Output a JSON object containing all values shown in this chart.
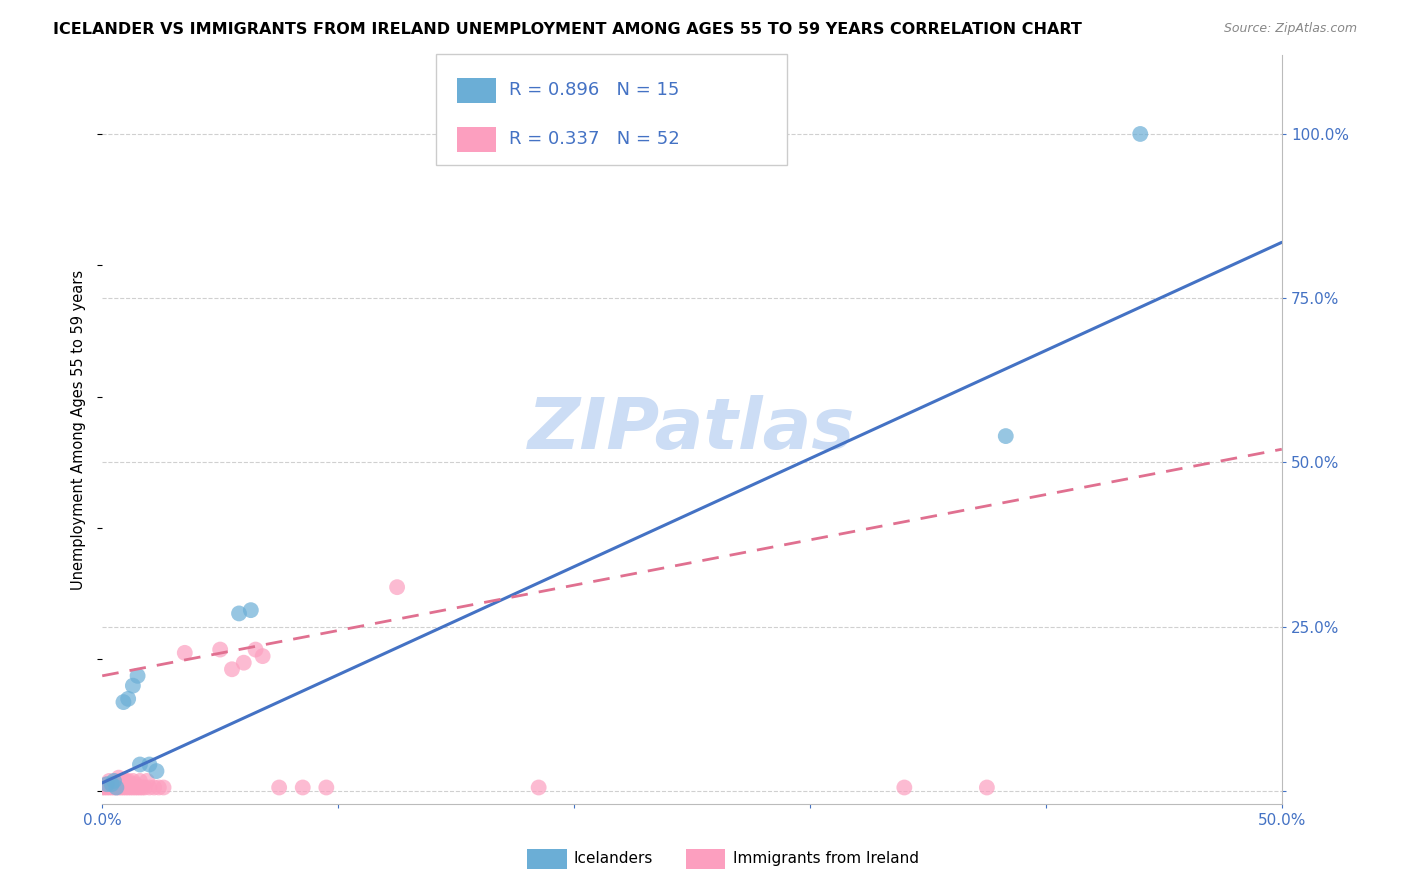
{
  "title": "ICELANDER VS IMMIGRANTS FROM IRELAND UNEMPLOYMENT AMONG AGES 55 TO 59 YEARS CORRELATION CHART",
  "source": "Source: ZipAtlas.com",
  "ylabel": "Unemployment Among Ages 55 to 59 years",
  "xlim": [
    0.0,
    0.5
  ],
  "ylim": [
    -0.02,
    1.12
  ],
  "xticks": [
    0.0,
    0.1,
    0.2,
    0.3,
    0.4,
    0.5
  ],
  "xtick_labels": [
    "0.0%",
    "",
    "",
    "",
    "",
    "50.0%"
  ],
  "ytick_labels_right": [
    "",
    "25.0%",
    "50.0%",
    "75.0%",
    "100.0%"
  ],
  "ytick_positions_right": [
    0.0,
    0.25,
    0.5,
    0.75,
    1.0
  ],
  "grid_color": "#d0d0d0",
  "watermark": "ZIPatlas",
  "blue_color": "#6baed6",
  "pink_color": "#fc9fbf",
  "blue_line_color": "#4472c4",
  "pink_line_color": "#e07090",
  "blue_line_x": [
    0.0,
    0.5
  ],
  "blue_line_y": [
    0.012,
    0.835
  ],
  "pink_line_x": [
    0.0,
    0.5
  ],
  "pink_line_y": [
    0.175,
    0.52
  ],
  "blue_scatter": [
    [
      0.002,
      0.01
    ],
    [
      0.004,
      0.01
    ],
    [
      0.005,
      0.015
    ],
    [
      0.006,
      0.005
    ],
    [
      0.009,
      0.135
    ],
    [
      0.011,
      0.14
    ],
    [
      0.013,
      0.16
    ],
    [
      0.015,
      0.175
    ],
    [
      0.016,
      0.04
    ],
    [
      0.02,
      0.04
    ],
    [
      0.023,
      0.03
    ],
    [
      0.058,
      0.27
    ],
    [
      0.063,
      0.275
    ],
    [
      0.383,
      0.54
    ],
    [
      0.44,
      1.0
    ]
  ],
  "pink_scatter": [
    [
      0.0,
      0.005
    ],
    [
      0.001,
      0.005
    ],
    [
      0.002,
      0.005
    ],
    [
      0.002,
      0.01
    ],
    [
      0.003,
      0.005
    ],
    [
      0.003,
      0.015
    ],
    [
      0.004,
      0.005
    ],
    [
      0.004,
      0.01
    ],
    [
      0.005,
      0.005
    ],
    [
      0.005,
      0.01
    ],
    [
      0.006,
      0.005
    ],
    [
      0.006,
      0.015
    ],
    [
      0.007,
      0.005
    ],
    [
      0.007,
      0.01
    ],
    [
      0.007,
      0.02
    ],
    [
      0.008,
      0.005
    ],
    [
      0.009,
      0.005
    ],
    [
      0.009,
      0.015
    ],
    [
      0.01,
      0.005
    ],
    [
      0.01,
      0.015
    ],
    [
      0.011,
      0.005
    ],
    [
      0.011,
      0.015
    ],
    [
      0.012,
      0.005
    ],
    [
      0.012,
      0.01
    ],
    [
      0.013,
      0.005
    ],
    [
      0.013,
      0.015
    ],
    [
      0.014,
      0.005
    ],
    [
      0.014,
      0.01
    ],
    [
      0.015,
      0.005
    ],
    [
      0.016,
      0.005
    ],
    [
      0.016,
      0.015
    ],
    [
      0.017,
      0.005
    ],
    [
      0.018,
      0.005
    ],
    [
      0.019,
      0.015
    ],
    [
      0.02,
      0.005
    ],
    [
      0.022,
      0.005
    ],
    [
      0.024,
      0.005
    ],
    [
      0.026,
      0.005
    ],
    [
      0.035,
      0.21
    ],
    [
      0.05,
      0.215
    ],
    [
      0.055,
      0.185
    ],
    [
      0.06,
      0.195
    ],
    [
      0.065,
      0.215
    ],
    [
      0.068,
      0.205
    ],
    [
      0.075,
      0.005
    ],
    [
      0.095,
      0.005
    ],
    [
      0.125,
      0.31
    ],
    [
      0.185,
      0.005
    ],
    [
      0.085,
      0.005
    ],
    [
      0.34,
      0.005
    ],
    [
      0.375,
      0.005
    ]
  ],
  "title_fontsize": 11.5,
  "axis_label_fontsize": 10.5,
  "tick_fontsize": 11,
  "legend_fontsize": 13,
  "watermark_fontsize": 52,
  "watermark_color": "#ccddf5",
  "background_color": "#ffffff"
}
